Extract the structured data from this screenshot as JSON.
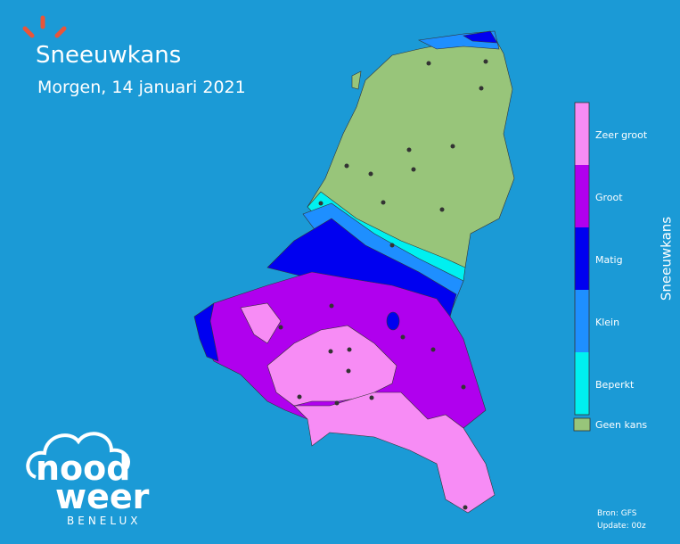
{
  "header": {
    "title": "Sneeuwkans",
    "subtitle": "Morgen, 14 januari 2021"
  },
  "legend": {
    "title": "Sneeuwkans",
    "items": [
      {
        "label": "Zeer groot",
        "color": "#f78cf5"
      },
      {
        "label": "Groot",
        "color": "#b000ee"
      },
      {
        "label": "Matig",
        "color": "#0000f0"
      },
      {
        "label": "Klein",
        "color": "#1e8fff"
      },
      {
        "label": "Beperkt",
        "color": "#00f0f0"
      }
    ],
    "none": {
      "label": "Geen kans",
      "color": "#98c57a"
    }
  },
  "source": {
    "line1": "Bron: GFS",
    "line2": "Update: 00z"
  },
  "logo": {
    "word1": "nood",
    "word2": "weer",
    "sub": "BENELUX"
  }
}
